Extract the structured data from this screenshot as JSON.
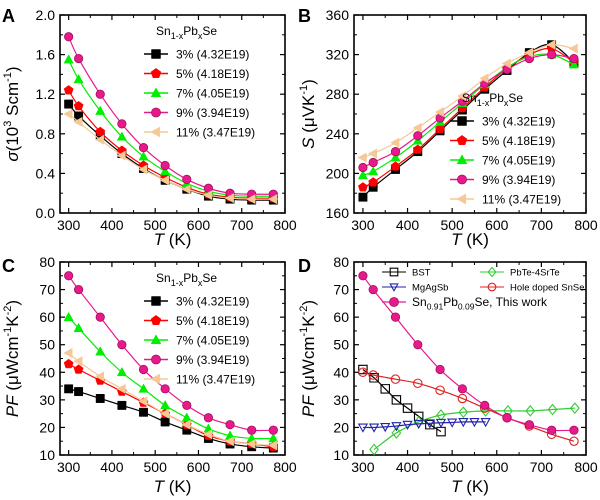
{
  "chart_data": [
    {
      "panel": "A",
      "type": "line",
      "ylabel_symbol": "σ",
      "ylabel_unit": "(10",
      "ylabel_exp": "3",
      "ylabel_unit2": " Scm",
      "ylabel_exp2": "-1",
      "ylabel_close": ")",
      "xlabel_symbol": "T",
      "xlabel_unit": " (K)",
      "xlim": [
        280,
        800
      ],
      "ylim": [
        0.0,
        2.0
      ],
      "xticks": [
        300,
        400,
        500,
        600,
        700,
        800
      ],
      "yticks": [
        "0.0",
        "0.4",
        "0.8",
        "1.2",
        "1.6",
        "2.0"
      ],
      "legend_title_base": "Sn",
      "legend_title_sub1": "1-x",
      "legend_title_mid": "Pb",
      "legend_title_sub2": "x",
      "legend_title_end": "Se",
      "legend_position": "top-right",
      "series": [
        {
          "name": "3% (4.32E19)",
          "color": "#000000",
          "marker": "square",
          "x": [
            300,
            323,
            373,
            423,
            473,
            523,
            573,
            623,
            673,
            723,
            773
          ],
          "y": [
            1.1,
            0.98,
            0.78,
            0.6,
            0.45,
            0.33,
            0.24,
            0.17,
            0.14,
            0.13,
            0.13
          ]
        },
        {
          "name": "5% (4.18E19)",
          "color": "#ff0000",
          "marker": "pentagon",
          "x": [
            300,
            323,
            373,
            423,
            473,
            523,
            573,
            623,
            673,
            723,
            773
          ],
          "y": [
            1.24,
            1.08,
            0.82,
            0.63,
            0.48,
            0.36,
            0.26,
            0.19,
            0.16,
            0.15,
            0.15
          ]
        },
        {
          "name": "7% (4.05E19)",
          "color": "#00ee00",
          "marker": "triangle",
          "x": [
            300,
            323,
            373,
            423,
            473,
            523,
            573,
            623,
            673,
            723,
            773
          ],
          "y": [
            1.55,
            1.35,
            1.03,
            0.77,
            0.57,
            0.42,
            0.3,
            0.22,
            0.18,
            0.17,
            0.17
          ]
        },
        {
          "name": "9% (3.94E19)",
          "color": "#e8198b",
          "marker": "circle",
          "x": [
            300,
            323,
            373,
            423,
            473,
            523,
            573,
            623,
            673,
            723,
            773
          ],
          "y": [
            1.78,
            1.56,
            1.2,
            0.9,
            0.66,
            0.48,
            0.34,
            0.25,
            0.2,
            0.19,
            0.19
          ]
        },
        {
          "name": "11% (3.47E19)",
          "color": "#f5c896",
          "marker": "triangle-left",
          "x": [
            300,
            323,
            373,
            423,
            473,
            523,
            573,
            623,
            673,
            723,
            773
          ],
          "y": [
            1.0,
            0.92,
            0.74,
            0.58,
            0.44,
            0.33,
            0.24,
            0.18,
            0.15,
            0.14,
            0.14
          ]
        }
      ]
    },
    {
      "panel": "B",
      "type": "line",
      "ylabel_symbol": "S",
      "ylabel_unit": " (μVK",
      "ylabel_exp": "-1",
      "ylabel_close": ")",
      "xlabel_symbol": "T",
      "xlabel_unit": " (K)",
      "xlim": [
        280,
        800
      ],
      "ylim": [
        160,
        360
      ],
      "xticks": [
        300,
        400,
        500,
        600,
        700,
        800
      ],
      "yticks": [
        "160",
        "200",
        "240",
        "280",
        "320",
        "360"
      ],
      "legend_title_base": "Sn",
      "legend_title_sub1": "1-x",
      "legend_title_mid": "Pb",
      "legend_title_sub2": "x",
      "legend_title_end": "Se",
      "legend_position": "bottom-right",
      "series": [
        {
          "name": "3% (4.32E19)",
          "color": "#000000",
          "marker": "square",
          "x": [
            300,
            323,
            373,
            423,
            473,
            523,
            573,
            623,
            673,
            723,
            773
          ],
          "y": [
            176,
            186,
            204,
            222,
            243,
            264,
            285,
            304,
            322,
            330,
            312
          ]
        },
        {
          "name": "5% (4.18E19)",
          "color": "#ff0000",
          "marker": "pentagon",
          "x": [
            300,
            323,
            373,
            423,
            473,
            523,
            573,
            623,
            673,
            723,
            773
          ],
          "y": [
            186,
            191,
            207,
            224,
            245,
            266,
            287,
            306,
            320,
            326,
            312
          ]
        },
        {
          "name": "7% (4.05E19)",
          "color": "#00ee00",
          "marker": "triangle",
          "x": [
            300,
            323,
            373,
            423,
            473,
            523,
            573,
            623,
            673,
            723,
            773
          ],
          "y": [
            198,
            202,
            216,
            233,
            252,
            271,
            290,
            307,
            318,
            320,
            310
          ]
        },
        {
          "name": "9% (3.94E19)",
          "color": "#e8198b",
          "marker": "circle",
          "x": [
            300,
            323,
            373,
            423,
            473,
            523,
            573,
            623,
            673,
            723,
            773
          ],
          "y": [
            206,
            211,
            222,
            238,
            256,
            273,
            291,
            305,
            316,
            320,
            316
          ]
        },
        {
          "name": "11% (3.47E19)",
          "color": "#f5c896",
          "marker": "triangle-left",
          "x": [
            300,
            323,
            373,
            423,
            473,
            523,
            573,
            623,
            673,
            723,
            773
          ],
          "y": [
            216,
            220,
            231,
            246,
            262,
            278,
            296,
            311,
            322,
            330,
            326
          ]
        }
      ]
    },
    {
      "panel": "C",
      "type": "line",
      "ylabel_symbol": "PF",
      "ylabel_unit": " (μWcm",
      "ylabel_exp": "-1",
      "ylabel_unit2": "K",
      "ylabel_exp2": "-2",
      "ylabel_close": ")",
      "xlabel_symbol": "T",
      "xlabel_unit": " (K)",
      "xlim": [
        280,
        800
      ],
      "ylim": [
        10,
        80
      ],
      "xticks": [
        300,
        400,
        500,
        600,
        700,
        800
      ],
      "yticks": [
        "10",
        "20",
        "30",
        "40",
        "50",
        "60",
        "70",
        "80"
      ],
      "legend_title_base": "Sn",
      "legend_title_sub1": "1-x",
      "legend_title_mid": "Pb",
      "legend_title_sub2": "x",
      "legend_title_end": "Se",
      "legend_position": "top-right",
      "series": [
        {
          "name": "3% (4.32E19)",
          "color": "#000000",
          "marker": "square",
          "x": [
            300,
            323,
            373,
            423,
            473,
            523,
            573,
            623,
            673,
            723,
            773
          ],
          "y": [
            34,
            33,
            30.5,
            28,
            25.5,
            22,
            19,
            16,
            14,
            13,
            12.5
          ]
        },
        {
          "name": "5% (4.18E19)",
          "color": "#ff0000",
          "marker": "pentagon",
          "x": [
            300,
            323,
            373,
            423,
            473,
            523,
            573,
            623,
            673,
            723,
            773
          ],
          "y": [
            43,
            41,
            37,
            33,
            29,
            25,
            21,
            17,
            15,
            14,
            13
          ]
        },
        {
          "name": "7% (4.05E19)",
          "color": "#00ee00",
          "marker": "triangle",
          "x": [
            300,
            323,
            373,
            423,
            473,
            523,
            573,
            623,
            673,
            723,
            773
          ],
          "y": [
            60,
            56,
            47.5,
            40,
            34,
            28,
            23.5,
            19.5,
            17,
            16,
            16
          ]
        },
        {
          "name": "9% (3.94E19)",
          "color": "#e8198b",
          "marker": "circle",
          "x": [
            300,
            323,
            373,
            423,
            473,
            523,
            573,
            623,
            673,
            723,
            773
          ],
          "y": [
            75,
            70,
            60,
            50,
            41,
            34,
            28,
            23.5,
            21,
            19,
            19
          ]
        },
        {
          "name": "11% (3.47E19)",
          "color": "#f5c896",
          "marker": "triangle-left",
          "x": [
            300,
            323,
            373,
            423,
            473,
            523,
            573,
            623,
            673,
            723,
            773
          ],
          "y": [
            47,
            44,
            38.5,
            34,
            29.5,
            25,
            21,
            17.5,
            15,
            14,
            13.5
          ]
        }
      ]
    },
    {
      "panel": "D",
      "type": "line",
      "ylabel_symbol": "PF",
      "ylabel_unit": " (μWcm",
      "ylabel_exp": "-1",
      "ylabel_unit2": "K",
      "ylabel_exp2": "-2",
      "ylabel_close": ")",
      "xlabel_symbol": "T",
      "xlabel_unit": " (K)",
      "xlim": [
        280,
        800
      ],
      "ylim": [
        10,
        80
      ],
      "xticks": [
        300,
        400,
        500,
        600,
        700,
        800
      ],
      "yticks": [
        "10",
        "20",
        "30",
        "40",
        "50",
        "60",
        "70",
        "80"
      ],
      "legend_position": "top",
      "this_work_base": "Sn",
      "this_work_sub1": "0.91",
      "this_work_mid": "Pb",
      "this_work_sub2": "0.09",
      "this_work_end": "Se, This work",
      "series": [
        {
          "name": "BST",
          "color": "#000000",
          "marker": "open-square",
          "x": [
            300,
            325,
            350,
            375,
            400,
            425,
            450,
            475
          ],
          "y": [
            41,
            38,
            34,
            30,
            27,
            24,
            21,
            18.5
          ]
        },
        {
          "name": "PbTe-4SrTe",
          "color": "#33cc33",
          "marker": "open-diamond",
          "x": [
            325,
            375,
            425,
            475,
            525,
            575,
            625,
            675,
            725,
            775
          ],
          "y": [
            12,
            18,
            22,
            24.5,
            25.5,
            26,
            26,
            26,
            26.5,
            27
          ]
        },
        {
          "name": "MgAgSb",
          "color": "#2222aa",
          "marker": "open-triangle-down",
          "x": [
            300,
            325,
            350,
            375,
            400,
            425,
            450,
            475,
            500,
            525,
            550,
            575
          ],
          "y": [
            20,
            20,
            20.2,
            20.5,
            21,
            21.3,
            21.5,
            21.7,
            21.8,
            22,
            22,
            22
          ]
        },
        {
          "name": "Hole doped SnSe",
          "color": "#dd2222",
          "marker": "open-circle",
          "x": [
            300,
            323,
            373,
            423,
            473,
            523,
            573,
            623,
            673,
            723,
            773
          ],
          "y": [
            40,
            39,
            37.5,
            36,
            33.5,
            30.5,
            27,
            23.5,
            20.5,
            17.5,
            15
          ]
        },
        {
          "name": "this-work",
          "color": "#e8198b",
          "marker": "circle",
          "x": [
            300,
            323,
            373,
            423,
            473,
            523,
            573,
            623,
            673,
            723,
            773
          ],
          "y": [
            75,
            70,
            60,
            50,
            41,
            34,
            28,
            23.5,
            21,
            19,
            19
          ]
        }
      ]
    }
  ]
}
